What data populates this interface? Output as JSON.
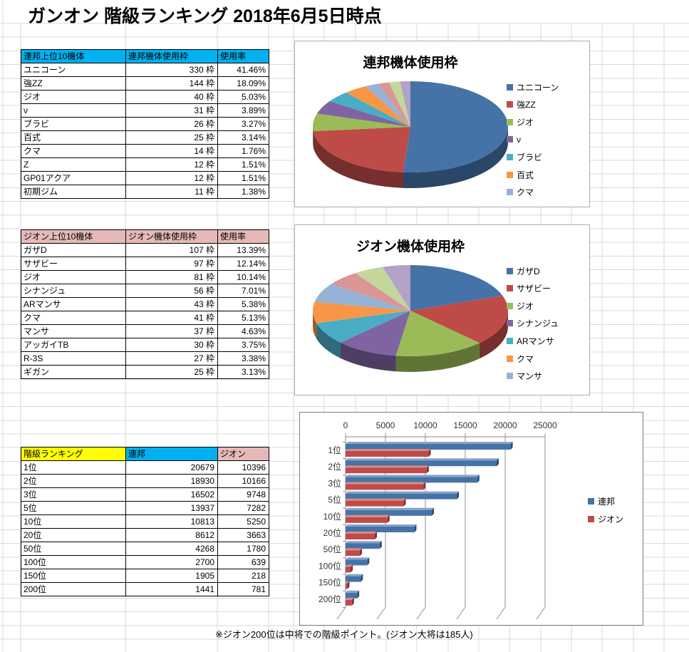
{
  "title": "ガンオン 階級ランキング 2018年6月5日時点",
  "footnote": "※ジオン200位は中将での階級ポイント。(ジオン大将は185人)",
  "tables": {
    "federation": {
      "headers": [
        "連邦上位10機体",
        "連邦機体使用枠",
        "使用率"
      ],
      "header_colors": [
        "#00B0F0",
        "#00B0F0",
        "#00B0F0"
      ],
      "rows": [
        [
          "ユニコーン",
          "330 枠",
          "41.46%"
        ],
        [
          "強ZZ",
          "144 枠",
          "18.09%"
        ],
        [
          "ジオ",
          "40 枠",
          "5.03%"
        ],
        [
          "ν",
          "31 枠",
          "3.89%"
        ],
        [
          "ブラビ",
          "26 枠",
          "3.27%"
        ],
        [
          "百式",
          "25 枠",
          "3.14%"
        ],
        [
          "クマ",
          "14 枠",
          "1.76%"
        ],
        [
          "Z",
          "12 枠",
          "1.51%"
        ],
        [
          "GP01アクア",
          "12 枠",
          "1.51%"
        ],
        [
          "初期ジム",
          "11 枠",
          "1.38%"
        ]
      ]
    },
    "zeon": {
      "headers": [
        "ジオン上位10機体",
        "ジオン機体使用枠",
        "使用率"
      ],
      "header_colors": [
        "#E6B9B8",
        "#E6B9B8",
        "#E6B9B8"
      ],
      "rows": [
        [
          "ガザD",
          "107 枠",
          "13.39%"
        ],
        [
          "サザビー",
          "97 枠",
          "12.14%"
        ],
        [
          "ジオ",
          "81 枠",
          "10.14%"
        ],
        [
          "シナンジュ",
          "56 枠",
          "7.01%"
        ],
        [
          "ARマンサ",
          "43 枠",
          "5.38%"
        ],
        [
          "クマ",
          "41 枠",
          "5.13%"
        ],
        [
          "マンサ",
          "37 枠",
          "4.63%"
        ],
        [
          "アッガイTB",
          "30 枠",
          "3.75%"
        ],
        [
          "R-3S",
          "27 枠",
          "3.38%"
        ],
        [
          "ギガン",
          "25 枠",
          "3.13%"
        ]
      ]
    },
    "ranking": {
      "headers": [
        "階級ランキング",
        "連邦",
        "ジオン"
      ],
      "header_colors": [
        "#FFFF00",
        "#00B0F0",
        "#E6B9B8"
      ],
      "rows": [
        [
          "1位",
          "20679",
          "10396"
        ],
        [
          "2位",
          "18930",
          "10166"
        ],
        [
          "3位",
          "16502",
          "9748"
        ],
        [
          "5位",
          "13937",
          "7282"
        ],
        [
          "10位",
          "10813",
          "5250"
        ],
        [
          "20位",
          "8612",
          "3663"
        ],
        [
          "50位",
          "4268",
          "1780"
        ],
        [
          "100位",
          "2700",
          "639"
        ],
        [
          "150位",
          "1905",
          "218"
        ],
        [
          "200位",
          "1441",
          "781"
        ]
      ]
    }
  },
  "chart_data": [
    {
      "type": "pie",
      "style": "3d",
      "title": "連邦機体使用枠",
      "labels": [
        "ユニコーン",
        "強ZZ",
        "ジオ",
        "ν",
        "ブラビ",
        "百式",
        "クマ",
        "Z",
        "GP01アクア",
        "初期ジム"
      ],
      "values": [
        330,
        144,
        40,
        31,
        26,
        25,
        14,
        12,
        12,
        11
      ],
      "colors": [
        "#4573A7",
        "#BE4B48",
        "#9BBB59",
        "#8064A2",
        "#4BACC6",
        "#F79646",
        "#95B3D7",
        "#D99694",
        "#C3D69B",
        "#B3A2C7"
      ],
      "legend_visible": [
        "ユニコーン",
        "強ZZ",
        "ジオ",
        "ν",
        "ブラビ",
        "百式",
        "クマ"
      ],
      "legend_position": "right"
    },
    {
      "type": "pie",
      "style": "3d",
      "title": "ジオン機体使用枠",
      "labels": [
        "ガザD",
        "サザビー",
        "ジオ",
        "シナンジュ",
        "ARマンサ",
        "クマ",
        "マンサ",
        "アッガイTB",
        "R-3S",
        "ギガン"
      ],
      "values": [
        107,
        97,
        81,
        56,
        43,
        41,
        37,
        30,
        27,
        25
      ],
      "colors": [
        "#4573A7",
        "#BE4B48",
        "#9BBB59",
        "#8064A2",
        "#4BACC6",
        "#F79646",
        "#95B3D7",
        "#D99694",
        "#C3D69B",
        "#B3A2C7"
      ],
      "legend_visible": [
        "ガザD",
        "サザビー",
        "ジオ",
        "シナンジュ",
        "ARマンサ",
        "クマ",
        "マンサ"
      ],
      "legend_position": "right"
    },
    {
      "type": "bar",
      "style": "3d",
      "orientation": "horizontal",
      "categories": [
        "1位",
        "2位",
        "3位",
        "5位",
        "10位",
        "20位",
        "50位",
        "100位",
        "150位",
        "200位"
      ],
      "series": [
        {
          "name": "連邦",
          "color": "#4573A7",
          "values": [
            20679,
            18930,
            16502,
            13937,
            10813,
            8612,
            4268,
            2700,
            1905,
            1441
          ]
        },
        {
          "name": "ジオン",
          "color": "#BE4B48",
          "values": [
            10396,
            10166,
            9748,
            7282,
            5250,
            3663,
            1780,
            639,
            218,
            781
          ]
        }
      ],
      "x_ticks": [
        0,
        5000,
        10000,
        15000,
        20000,
        25000
      ],
      "xlim": [
        0,
        25000
      ],
      "grid": true,
      "legend_position": "right"
    }
  ]
}
